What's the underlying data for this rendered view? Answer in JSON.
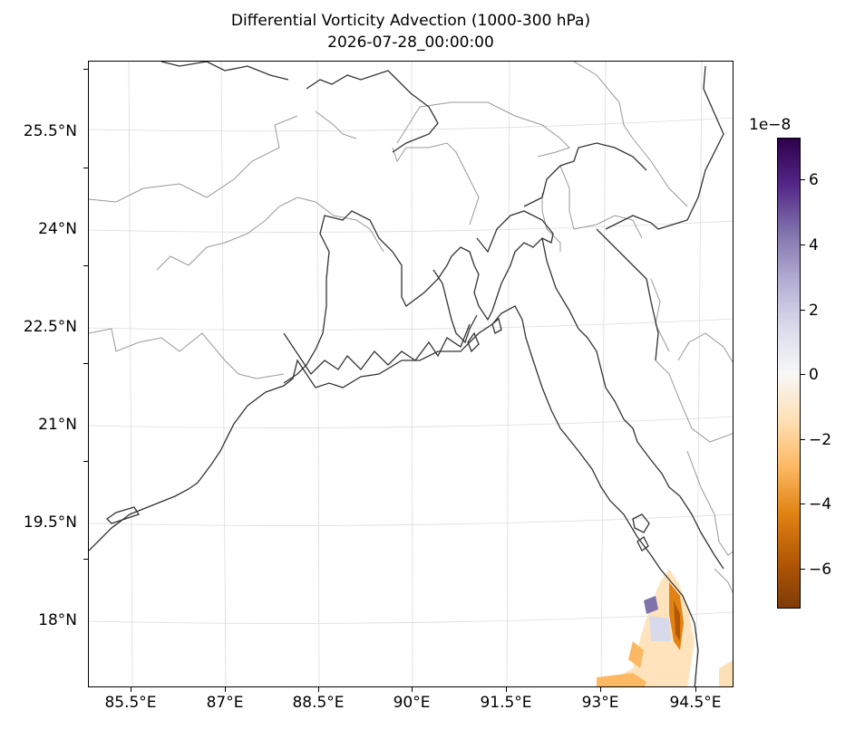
{
  "title": "Differential Vorticity Advection (1000-300 hPa)",
  "subtitle": "2026-07-28_00:00:00",
  "map": {
    "region": "Bay of Bengal / Bangladesh",
    "latitude_labels": [
      "25.5°N",
      "24°N",
      "22.5°N",
      "21°N",
      "19.5°N",
      "18°N"
    ],
    "longitude_labels": [
      "85.5°E",
      "87°E",
      "88.5°E",
      "90°E",
      "91.5°E",
      "93°E",
      "94.5°E"
    ],
    "gridlines": true,
    "coastline_color": "#333333",
    "border_color": "#999999"
  },
  "colorbar": {
    "exponent_label": "1e−8",
    "tick_labels": [
      "6",
      "4",
      "2",
      "0",
      "−2",
      "−4",
      "−6"
    ],
    "colormap": "PuOr",
    "range": [
      -7.3,
      7.3
    ],
    "colors": [
      "#7f3b08",
      "#b35806",
      "#e08214",
      "#fdb863",
      "#fee0b6",
      "#f7f7f7",
      "#d8daeb",
      "#b2abd2",
      "#8073ac",
      "#542788",
      "#2d004b"
    ]
  },
  "chart_data": {
    "type": "heatmap",
    "title": "Differential Vorticity Advection (1000-300 hPa)",
    "subtitle": "2026-07-28_00:00:00",
    "field_extent_note_lat": [
      17.0,
      18.8
    ],
    "field_extent_note_lon": [
      92.8,
      94.9
    ],
    "value_range": [
      -7.3e-08,
      7.3e-08
    ]
  }
}
